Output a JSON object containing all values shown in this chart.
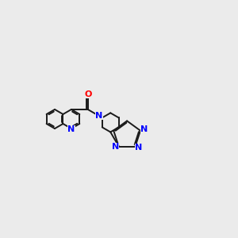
{
  "bg_color": "#ebebeb",
  "bond_color": "#1a1a1a",
  "N_color": "#0000ff",
  "O_color": "#ff0000",
  "line_width": 1.4,
  "figsize": [
    3.0,
    3.0
  ],
  "dpi": 100,
  "xlim": [
    -1.5,
    10.5
  ],
  "ylim": [
    -1.5,
    5.5
  ]
}
